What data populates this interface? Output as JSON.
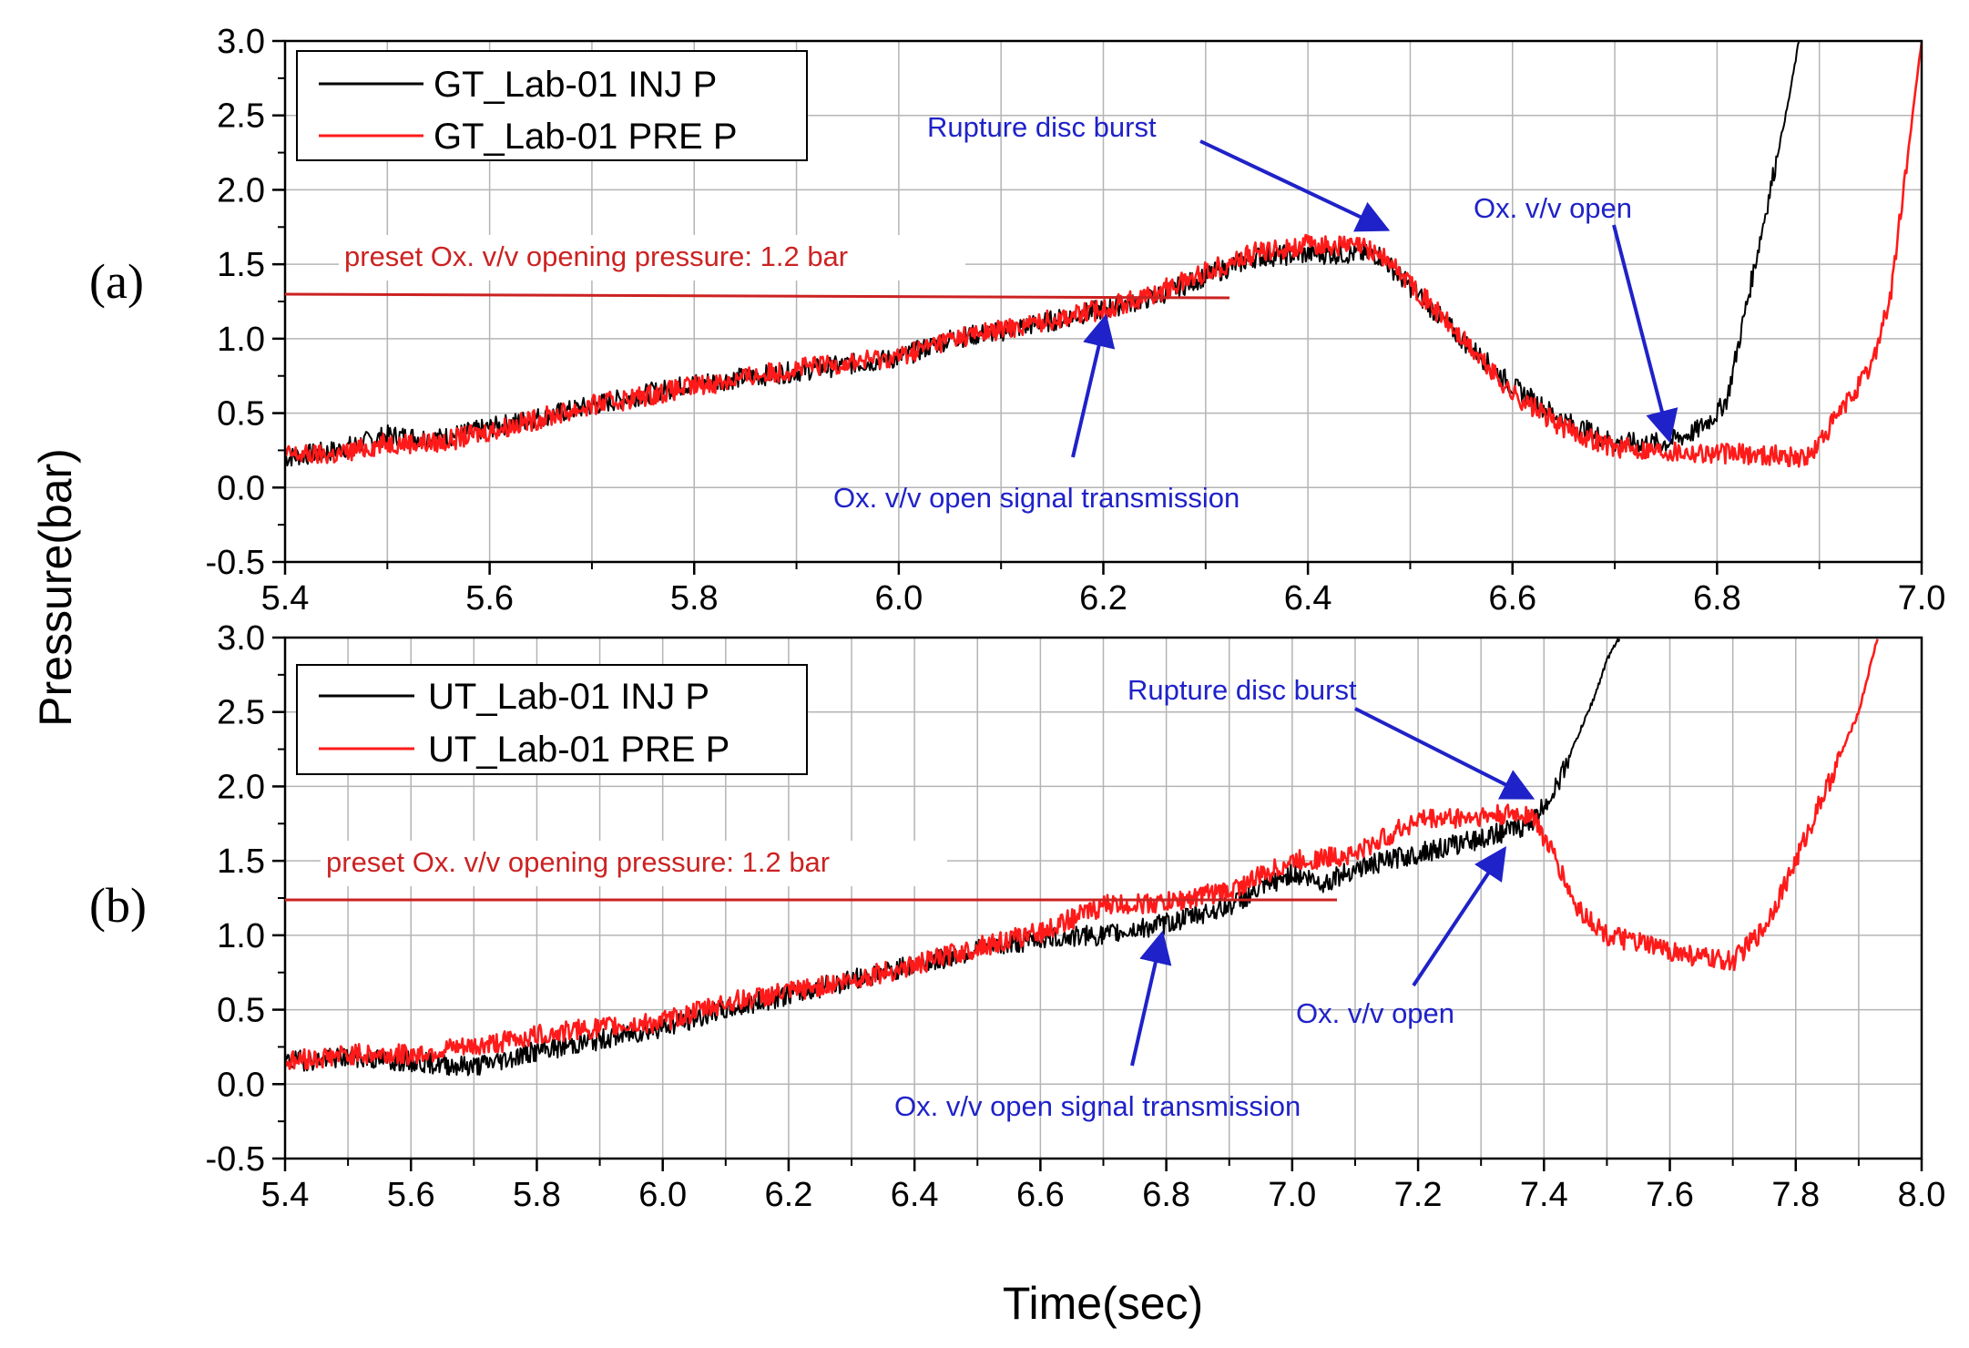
{
  "colors": {
    "black_series": "#000000",
    "red_series": "#ff1a1a",
    "annotation_blue": "#1f22c8",
    "annotation_red": "#cc2222",
    "grid": "#b4b4b4"
  },
  "figure": {
    "ylabel": "Pressure(bar)",
    "xlabel": "Time(sec)"
  },
  "chart_data": [
    {
      "type": "line",
      "panel_label": "(a)",
      "xlim": [
        5.4,
        7.0
      ],
      "ylim": [
        -0.5,
        3.0
      ],
      "grid": true,
      "x_ticks": [
        "5.4",
        "5.6",
        "5.8",
        "6.0",
        "6.2",
        "6.4",
        "6.6",
        "6.8",
        "7.0"
      ],
      "y_ticks": [
        "-0.5",
        "0.0",
        "0.5",
        "1.0",
        "1.5",
        "2.0",
        "2.5",
        "3.0"
      ],
      "legend_position": "top-left",
      "series": [
        {
          "name": "GT_Lab-01 INJ P",
          "color": "black",
          "x": [
            5.4,
            5.45,
            5.5,
            5.55,
            5.6,
            5.7,
            5.8,
            5.9,
            6.0,
            6.05,
            6.1,
            6.15,
            6.2,
            6.25,
            6.3,
            6.35,
            6.4,
            6.45,
            6.47,
            6.5,
            6.55,
            6.6,
            6.65,
            6.7,
            6.75,
            6.78,
            6.8,
            6.81,
            6.84,
            6.87,
            6.88
          ],
          "y": [
            0.2,
            0.25,
            0.35,
            0.33,
            0.4,
            0.55,
            0.7,
            0.78,
            0.87,
            1.0,
            1.05,
            1.12,
            1.2,
            1.28,
            1.42,
            1.55,
            1.57,
            1.57,
            1.56,
            1.35,
            1.0,
            0.68,
            0.45,
            0.3,
            0.3,
            0.38,
            0.5,
            0.6,
            1.6,
            2.6,
            3.0
          ]
        },
        {
          "name": "GT_Lab-01 PRE P",
          "color": "red",
          "x": [
            5.4,
            5.45,
            5.5,
            5.55,
            5.6,
            5.7,
            5.8,
            5.9,
            6.0,
            6.05,
            6.1,
            6.15,
            6.2,
            6.25,
            6.3,
            6.35,
            6.4,
            6.45,
            6.47,
            6.5,
            6.55,
            6.6,
            6.65,
            6.7,
            6.75,
            6.8,
            6.85,
            6.89,
            6.9,
            6.95,
            6.97,
            7.0
          ],
          "y": [
            0.22,
            0.22,
            0.3,
            0.3,
            0.38,
            0.55,
            0.68,
            0.8,
            0.88,
            1.0,
            1.06,
            1.13,
            1.2,
            1.3,
            1.45,
            1.58,
            1.63,
            1.62,
            1.57,
            1.38,
            1.0,
            0.63,
            0.4,
            0.27,
            0.25,
            0.23,
            0.22,
            0.2,
            0.3,
            0.8,
            1.3,
            3.0
          ]
        }
      ],
      "annotations": [
        {
          "text": "Rupture disc burst",
          "color": "blue"
        },
        {
          "text": "Ox. v/v open",
          "color": "blue"
        },
        {
          "text": "Ox. v/v open signal transmission",
          "color": "blue"
        },
        {
          "text": "preset Ox. v/v opening pressure: 1.2 bar",
          "color": "red"
        }
      ]
    },
    {
      "type": "line",
      "panel_label": "(b)",
      "xlim": [
        5.4,
        8.0
      ],
      "ylim": [
        -0.5,
        3.0
      ],
      "grid": true,
      "x_ticks": [
        "5.4",
        "5.6",
        "5.8",
        "6.0",
        "6.2",
        "6.4",
        "6.6",
        "6.8",
        "7.0",
        "7.2",
        "7.4",
        "7.6",
        "7.8",
        "8.0"
      ],
      "y_ticks": [
        "-0.5",
        "0.0",
        "0.5",
        "1.0",
        "1.5",
        "2.0",
        "2.5",
        "3.0"
      ],
      "legend_position": "top-left",
      "series": [
        {
          "name": "UT_Lab-01 INJ P",
          "color": "black",
          "x": [
            5.4,
            5.5,
            5.6,
            5.7,
            5.8,
            5.9,
            6.0,
            6.1,
            6.2,
            6.3,
            6.4,
            6.5,
            6.6,
            6.7,
            6.8,
            6.9,
            7.0,
            7.05,
            7.1,
            7.2,
            7.3,
            7.38,
            7.42,
            7.45,
            7.48,
            7.5,
            7.52
          ],
          "y": [
            0.15,
            0.18,
            0.15,
            0.12,
            0.22,
            0.3,
            0.38,
            0.5,
            0.6,
            0.7,
            0.8,
            0.9,
            0.98,
            1.0,
            1.08,
            1.2,
            1.42,
            1.35,
            1.45,
            1.55,
            1.65,
            1.75,
            2.0,
            2.3,
            2.6,
            2.85,
            3.0
          ]
        },
        {
          "name": "UT_Lab-01 PRE P",
          "color": "red",
          "x": [
            5.4,
            5.5,
            5.6,
            5.7,
            5.8,
            5.9,
            6.0,
            6.1,
            6.2,
            6.3,
            6.4,
            6.5,
            6.6,
            6.7,
            6.8,
            6.9,
            7.0,
            7.05,
            7.1,
            7.2,
            7.3,
            7.38,
            7.42,
            7.45,
            7.5,
            7.55,
            7.6,
            7.65,
            7.7,
            7.75,
            7.8,
            7.85,
            7.9,
            7.93
          ],
          "y": [
            0.15,
            0.2,
            0.2,
            0.25,
            0.33,
            0.38,
            0.42,
            0.55,
            0.62,
            0.7,
            0.8,
            0.92,
            1.02,
            1.2,
            1.22,
            1.3,
            1.5,
            1.52,
            1.55,
            1.78,
            1.8,
            1.82,
            1.5,
            1.2,
            1.0,
            0.95,
            0.9,
            0.85,
            0.82,
            1.05,
            1.5,
            2.0,
            2.5,
            3.0
          ]
        }
      ],
      "annotations": [
        {
          "text": "Rupture disc burst",
          "color": "blue"
        },
        {
          "text": "Ox. v/v open",
          "color": "blue"
        },
        {
          "text": "Ox. v/v open signal transmission",
          "color": "blue"
        },
        {
          "text": "preset Ox. v/v opening pressure: 1.2 bar",
          "color": "red"
        }
      ]
    }
  ]
}
